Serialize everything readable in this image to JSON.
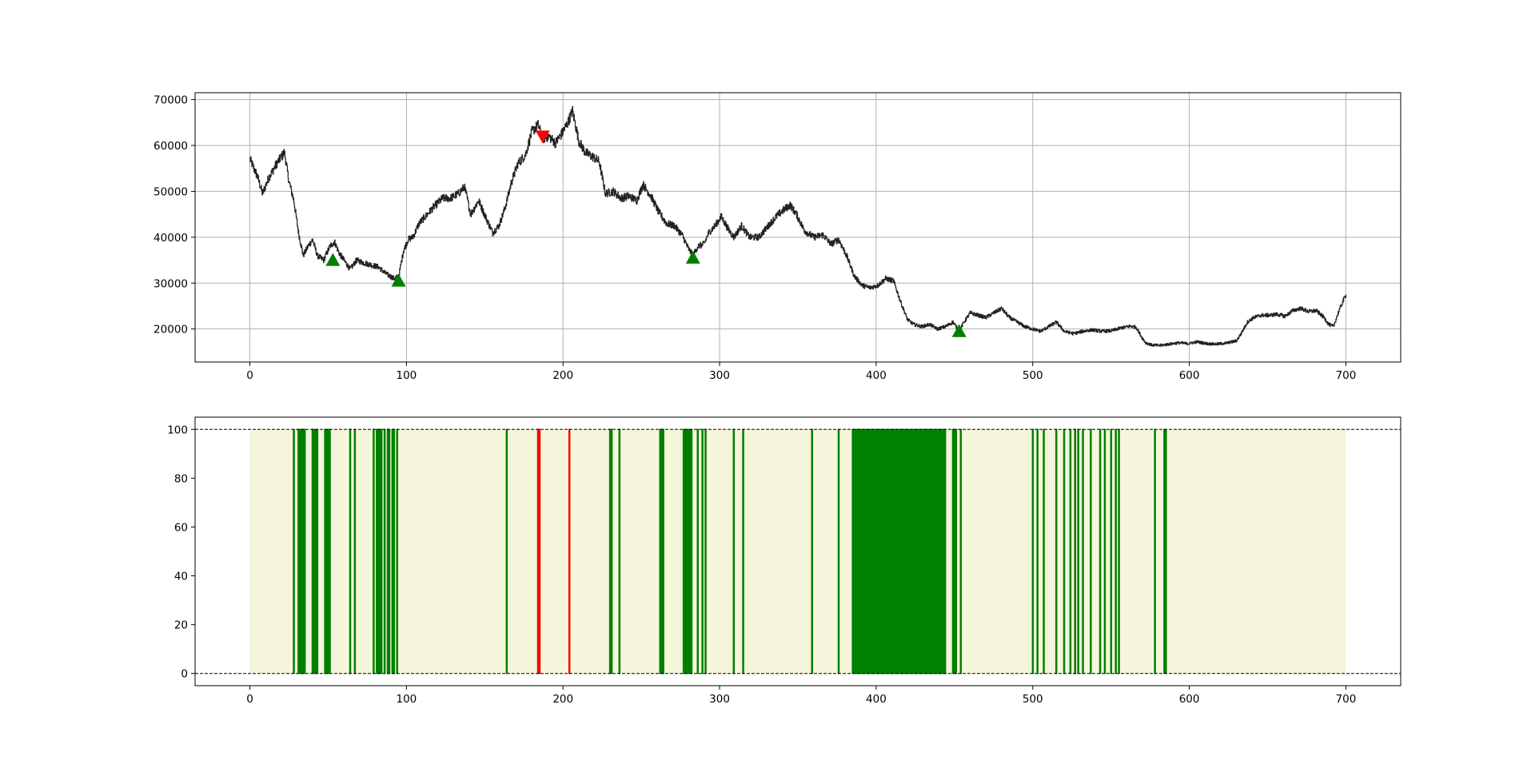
{
  "chart_data": [
    {
      "type": "line",
      "title": "",
      "xlabel": "",
      "ylabel": "",
      "xlim": [
        -35,
        735
      ],
      "ylim": [
        12800,
        71500
      ],
      "grid": true,
      "xticks": [
        0,
        100,
        200,
        300,
        400,
        500,
        600,
        700
      ],
      "yticks": [
        20000,
        30000,
        40000,
        50000,
        60000,
        70000
      ],
      "series": [
        {
          "color": "#222222",
          "anchors": [
            [
              0,
              57000
            ],
            [
              5,
              53000
            ],
            [
              8,
              49500
            ],
            [
              12,
              53000
            ],
            [
              17,
              56000
            ],
            [
              22,
              58500
            ],
            [
              25,
              52000
            ],
            [
              28,
              48000
            ],
            [
              31,
              41000
            ],
            [
              34,
              36000
            ],
            [
              37,
              38000
            ],
            [
              40,
              39500
            ],
            [
              43,
              36000
            ],
            [
              47,
              35000
            ],
            [
              51,
              38000
            ],
            [
              54,
              39000
            ],
            [
              57,
              36500
            ],
            [
              61,
              34500
            ],
            [
              64,
              33000
            ],
            [
              68,
              35000
            ],
            [
              72,
              34500
            ],
            [
              77,
              34000
            ],
            [
              82,
              33500
            ],
            [
              87,
              32000
            ],
            [
              92,
              31000
            ],
            [
              95,
              31500
            ],
            [
              98,
              37000
            ],
            [
              101,
              39500
            ],
            [
              104,
              40000
            ],
            [
              108,
              43000
            ],
            [
              112,
              44500
            ],
            [
              117,
              46500
            ],
            [
              123,
              48500
            ],
            [
              128,
              48500
            ],
            [
              133,
              49500
            ],
            [
              137,
              51000
            ],
            [
              141,
              45000
            ],
            [
              146,
              48000
            ],
            [
              151,
              44000
            ],
            [
              155,
              41000
            ],
            [
              159,
              42500
            ],
            [
              163,
              46500
            ],
            [
              167,
              52000
            ],
            [
              171,
              56000
            ],
            [
              176,
              58000
            ],
            [
              180,
              63000
            ],
            [
              184,
              64500
            ],
            [
              187,
              61500
            ],
            [
              191,
              62000
            ],
            [
              195,
              60500
            ],
            [
              199,
              62500
            ],
            [
              203,
              65000
            ],
            [
              206,
              67500
            ],
            [
              210,
              61000
            ],
            [
              214,
              58500
            ],
            [
              219,
              57500
            ],
            [
              223,
              56500
            ],
            [
              227,
              49500
            ],
            [
              232,
              50000
            ],
            [
              237,
              48500
            ],
            [
              242,
              49000
            ],
            [
              247,
              48000
            ],
            [
              251,
              51500
            ],
            [
              256,
              49000
            ],
            [
              261,
              45500
            ],
            [
              266,
              43000
            ],
            [
              271,
              42500
            ],
            [
              276,
              40500
            ],
            [
              280,
              37500
            ],
            [
              283,
              36000
            ],
            [
              286,
              38000
            ],
            [
              290,
              38500
            ],
            [
              293,
              41000
            ],
            [
              297,
              42500
            ],
            [
              301,
              44500
            ],
            [
              305,
              42000
            ],
            [
              309,
              40000
            ],
            [
              314,
              42500
            ],
            [
              319,
              40000
            ],
            [
              325,
              40000
            ],
            [
              331,
              42500
            ],
            [
              336,
              44500
            ],
            [
              341,
              46000
            ],
            [
              345,
              47000
            ],
            [
              349,
              45000
            ],
            [
              354,
              41500
            ],
            [
              360,
              40000
            ],
            [
              366,
              40500
            ],
            [
              371,
              38500
            ],
            [
              376,
              39500
            ],
            [
              381,
              36000
            ],
            [
              386,
              31500
            ],
            [
              391,
              29500
            ],
            [
              396,
              29000
            ],
            [
              401,
              29500
            ],
            [
              406,
              31000
            ],
            [
              411,
              30500
            ],
            [
              416,
              25500
            ],
            [
              420,
              22000
            ],
            [
              424,
              21000
            ],
            [
              429,
              20500
            ],
            [
              434,
              21000
            ],
            [
              439,
              20000
            ],
            [
              444,
              20500
            ],
            [
              449,
              21500
            ],
            [
              453,
              19500
            ],
            [
              456,
              21500
            ],
            [
              460,
              23500
            ],
            [
              465,
              23000
            ],
            [
              470,
              22500
            ],
            [
              475,
              23500
            ],
            [
              480,
              24500
            ],
            [
              485,
              22500
            ],
            [
              490,
              21500
            ],
            [
              495,
              20500
            ],
            [
              500,
              20000
            ],
            [
              505,
              19500
            ],
            [
              510,
              20500
            ],
            [
              515,
              21500
            ],
            [
              520,
              19500
            ],
            [
              526,
              19000
            ],
            [
              532,
              19500
            ],
            [
              538,
              19800
            ],
            [
              544,
              19500
            ],
            [
              550,
              19600
            ],
            [
              556,
              20200
            ],
            [
              562,
              20600
            ],
            [
              566,
              20400
            ],
            [
              569,
              18500
            ],
            [
              572,
              17000
            ],
            [
              576,
              16500
            ],
            [
              581,
              16400
            ],
            [
              587,
              16700
            ],
            [
              593,
              17000
            ],
            [
              599,
              16800
            ],
            [
              605,
              17200
            ],
            [
              611,
              16800
            ],
            [
              617,
              16700
            ],
            [
              623,
              16900
            ],
            [
              630,
              17400
            ],
            [
              633,
              19000
            ],
            [
              637,
              21500
            ],
            [
              641,
              22500
            ],
            [
              646,
              23000
            ],
            [
              651,
              23000
            ],
            [
              656,
              23200
            ],
            [
              661,
              22800
            ],
            [
              666,
              24000
            ],
            [
              671,
              24500
            ],
            [
              676,
              23800
            ],
            [
              681,
              24000
            ],
            [
              686,
              22500
            ],
            [
              689,
              21000
            ],
            [
              692,
              20500
            ],
            [
              695,
              23500
            ],
            [
              698,
              26000
            ],
            [
              700,
              27500
            ]
          ]
        }
      ],
      "markers": [
        {
          "symbol": "triangle-up",
          "color": "#008000",
          "points": [
            [
              53,
              35000
            ],
            [
              95,
              30500
            ],
            [
              283,
              35500
            ],
            [
              453,
              19500
            ]
          ]
        },
        {
          "symbol": "triangle-down",
          "color": "#ff0000",
          "points": [
            [
              187,
              62000
            ]
          ]
        }
      ]
    },
    {
      "type": "bar",
      "title": "",
      "xlabel": "",
      "ylabel": "",
      "xlim": [
        -35,
        735
      ],
      "ylim": [
        -5,
        105
      ],
      "grid": false,
      "xticks": [
        0,
        100,
        200,
        300,
        400,
        500,
        600,
        700
      ],
      "yticks": [
        0,
        20,
        40,
        60,
        80,
        100
      ],
      "background_span": {
        "x": [
          0,
          700
        ],
        "color": "#f5f5dc"
      },
      "reference_lines": [
        0,
        100
      ],
      "green_bars": [
        28,
        31,
        32,
        33,
        34,
        35,
        40,
        41,
        42,
        43,
        48,
        49,
        50,
        51,
        64,
        67,
        79,
        81,
        82,
        83,
        84,
        86,
        88,
        89,
        91,
        92,
        94,
        164,
        230,
        231,
        236,
        262,
        263,
        264,
        277,
        278,
        279,
        280,
        281,
        282,
        286,
        289,
        291,
        309,
        315,
        359,
        376,
        385,
        386,
        387,
        388,
        389,
        390,
        391,
        392,
        393,
        394,
        395,
        396,
        397,
        398,
        399,
        400,
        401,
        402,
        403,
        404,
        405,
        406,
        407,
        408,
        409,
        410,
        411,
        412,
        413,
        414,
        415,
        416,
        417,
        418,
        419,
        420,
        421,
        422,
        423,
        424,
        425,
        426,
        427,
        428,
        429,
        430,
        431,
        432,
        433,
        434,
        435,
        436,
        437,
        438,
        439,
        440,
        441,
        442,
        443,
        444,
        449,
        450,
        451,
        454,
        500,
        503,
        507,
        515,
        520,
        524,
        527,
        529,
        532,
        537,
        543,
        546,
        550,
        553,
        555,
        578,
        584,
        585
      ],
      "red_bars": [
        184,
        185,
        204
      ],
      "bar_value": 100,
      "green_color": "#008000",
      "red_color": "#ff0000"
    }
  ]
}
